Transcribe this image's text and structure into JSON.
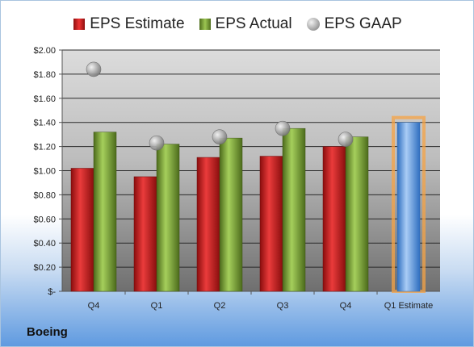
{
  "legend": {
    "estimate": "EPS Estimate",
    "actual": "EPS Actual",
    "gaap": "EPS GAAP"
  },
  "company": "Boeing",
  "chart_data": {
    "type": "bar",
    "categories": [
      "Q4",
      "Q1",
      "Q2",
      "Q3",
      "Q4",
      "Q1 Estimate"
    ],
    "series": [
      {
        "name": "EPS Estimate",
        "values": [
          1.02,
          0.95,
          1.11,
          1.12,
          1.2,
          null
        ],
        "color": "#d42a2a"
      },
      {
        "name": "EPS Actual",
        "values": [
          1.32,
          1.22,
          1.27,
          1.35,
          1.28,
          null
        ],
        "color": "#82ac3e"
      },
      {
        "name": "EPS GAAP",
        "values": [
          1.84,
          1.23,
          1.28,
          1.35,
          1.26,
          null
        ],
        "color": "#a6a6a6"
      }
    ],
    "projection": {
      "category": "Q1 Estimate",
      "value": 1.4,
      "color": "#6aa3e4",
      "highlight": "#f5a344"
    },
    "ylim": [
      0,
      2.0
    ],
    "yticks": [
      "$-",
      "$0.20",
      "$0.40",
      "$0.60",
      "$0.80",
      "$1.00",
      "$1.20",
      "$1.40",
      "$1.60",
      "$1.80",
      "$2.00"
    ],
    "grid": true,
    "legend_position": "top"
  }
}
